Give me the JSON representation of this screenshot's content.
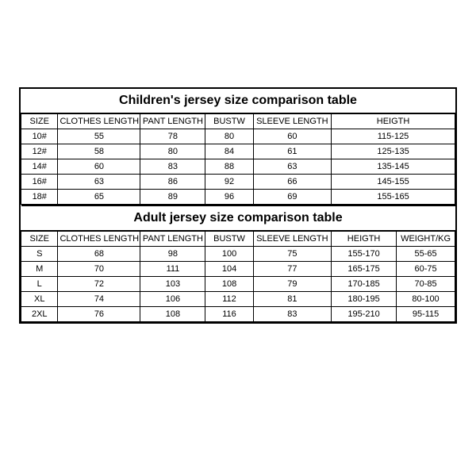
{
  "children": {
    "title": "Children's jersey size comparison table",
    "columns": [
      "SIZE",
      "CLOTHES LENGTH",
      "PANT LENGTH",
      "BUSTW",
      "SLEEVE LENGTH",
      "HEIGTH"
    ],
    "rows": [
      [
        "10#",
        "55",
        "78",
        "80",
        "60",
        "115-125"
      ],
      [
        "12#",
        "58",
        "80",
        "84",
        "61",
        "125-135"
      ],
      [
        "14#",
        "60",
        "83",
        "88",
        "63",
        "135-145"
      ],
      [
        "16#",
        "63",
        "86",
        "92",
        "66",
        "145-155"
      ],
      [
        "18#",
        "65",
        "89",
        "96",
        "69",
        "155-165"
      ]
    ]
  },
  "adult": {
    "title": "Adult jersey size comparison table",
    "columns": [
      "SIZE",
      "CLOTHES LENGTH",
      "PANT LENGTH",
      "BUSTW",
      "SLEEVE LENGTH",
      "HEIGTH",
      "WEIGHT/KG"
    ],
    "rows": [
      [
        "S",
        "68",
        "98",
        "100",
        "75",
        "155-170",
        "55-65"
      ],
      [
        "M",
        "70",
        "111",
        "104",
        "77",
        "165-175",
        "60-75"
      ],
      [
        "L",
        "72",
        "103",
        "108",
        "79",
        "170-185",
        "70-85"
      ],
      [
        "XL",
        "74",
        "106",
        "112",
        "81",
        "180-195",
        "80-100"
      ],
      [
        "2XL",
        "76",
        "108",
        "116",
        "83",
        "195-210",
        "95-115"
      ]
    ]
  },
  "style": {
    "border_color": "#000000",
    "background_color": "#ffffff",
    "title_fontsize": 16,
    "cell_fontsize": 11,
    "font_family": "Arial",
    "children_col_widths_pct": [
      8.5,
      19,
      15,
      11,
      18,
      28.5
    ],
    "adult_col_widths_pct": [
      8.5,
      19,
      15,
      11,
      18,
      15,
      13.5
    ]
  }
}
